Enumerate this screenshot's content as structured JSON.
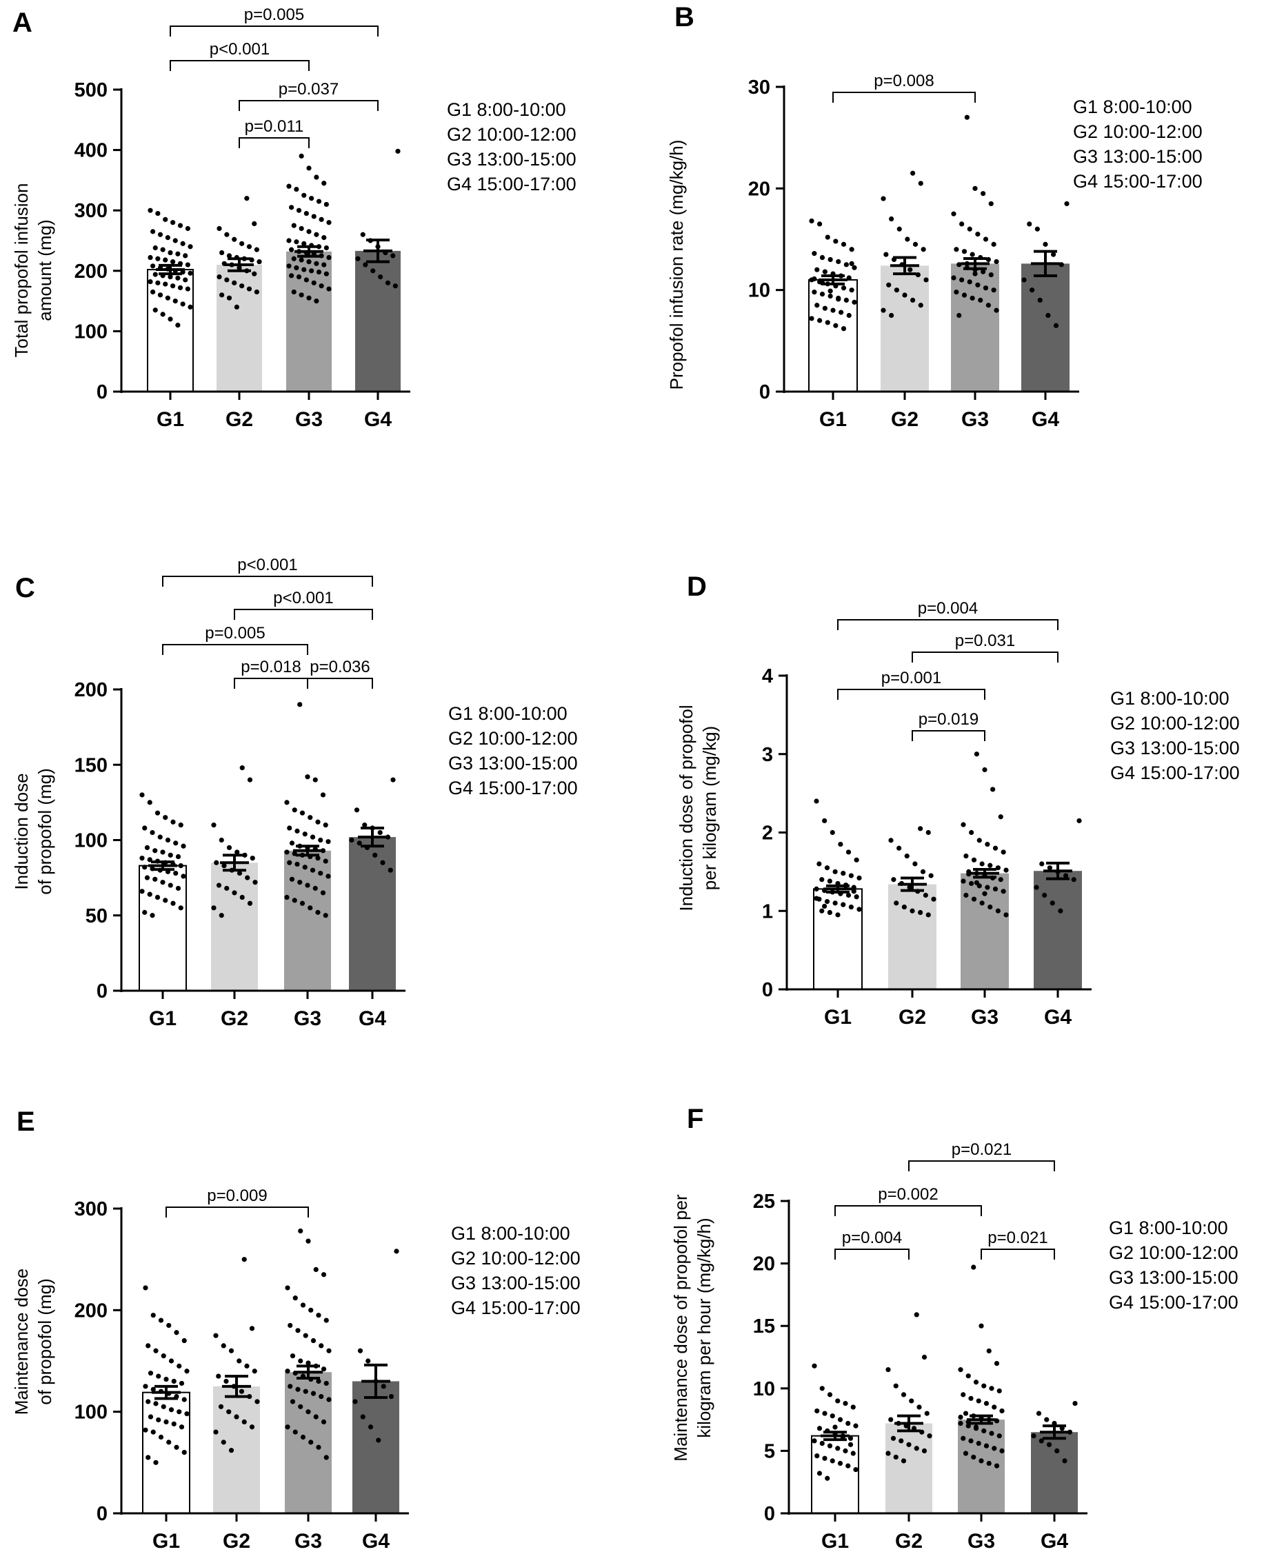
{
  "figure": {
    "legend_lines": [
      "G1   8:00-10:00",
      "G2 10:00-12:00",
      "G3 13:00-15:00",
      "G4 15:00-17:00"
    ],
    "bar_colors": [
      "#ffffff",
      "#d6d6d6",
      "#a0a0a0",
      "#636363"
    ],
    "axis_color": "#000000"
  },
  "chart_data": [
    {
      "panel": "A",
      "type": "bar",
      "categories": [
        "G1",
        "G2",
        "G3",
        "G4"
      ],
      "values": [
        202,
        210,
        232,
        233
      ],
      "sem": [
        7,
        10,
        8,
        18
      ],
      "ylabel": [
        "Total propofol infusion",
        "amount (mg)"
      ],
      "ylim": [
        0,
        500
      ],
      "yticks": [
        0,
        100,
        200,
        300,
        400,
        500
      ],
      "comparisons": [
        {
          "from": 0,
          "to": 3,
          "label": "p=0.005"
        },
        {
          "from": 0,
          "to": 2,
          "label": "p<0.001"
        },
        {
          "from": 1,
          "to": 3,
          "label": "p=0.037"
        },
        {
          "from": 1,
          "to": 2,
          "label": "p=0.011"
        }
      ],
      "points": [
        [
          300,
          295,
          285,
          280,
          275,
          270,
          265,
          260,
          255,
          250,
          245,
          240,
          238,
          235,
          230,
          228,
          225,
          222,
          220,
          218,
          215,
          212,
          210,
          208,
          205,
          203,
          200,
          198,
          196,
          194,
          192,
          190,
          188,
          185,
          182,
          180,
          178,
          175,
          172,
          170,
          165,
          160,
          155,
          150,
          145,
          140,
          135,
          128,
          120,
          110
        ],
        [
          320,
          278,
          270,
          260,
          252,
          245,
          240,
          235,
          230,
          225,
          222,
          220,
          218,
          215,
          212,
          210,
          205,
          200,
          195,
          190,
          185,
          180,
          175,
          170,
          165,
          160,
          155,
          140
        ],
        [
          390,
          370,
          355,
          345,
          340,
          335,
          325,
          320,
          315,
          310,
          305,
          300,
          295,
          290,
          285,
          280,
          275,
          270,
          265,
          260,
          255,
          250,
          248,
          245,
          242,
          240,
          238,
          235,
          232,
          230,
          228,
          225,
          222,
          220,
          218,
          215,
          212,
          210,
          208,
          205,
          202,
          200,
          198,
          195,
          192,
          190,
          185,
          180,
          175,
          170,
          165,
          160,
          155,
          150
        ],
        [
          398,
          260,
          250,
          240,
          230,
          225,
          220,
          210,
          200,
          190,
          180,
          175
        ]
      ]
    },
    {
      "panel": "B",
      "type": "bar",
      "categories": [
        "G1",
        "G2",
        "G3",
        "G4"
      ],
      "values": [
        11.0,
        12.4,
        12.6,
        12.6
      ],
      "sem": [
        0.4,
        0.8,
        0.5,
        1.2
      ],
      "ylabel": [
        "Propofol infusion rate (mg/kg/h)"
      ],
      "ylim": [
        0,
        30
      ],
      "yticks": [
        0,
        10,
        20,
        30
      ],
      "comparisons": [
        {
          "from": 0,
          "to": 2,
          "label": "p=0.008"
        }
      ],
      "points": [
        [
          16.8,
          16.5,
          15.2,
          14.8,
          14.5,
          14.0,
          13.6,
          13.2,
          13.0,
          12.8,
          12.5,
          12.2,
          12.0,
          11.8,
          11.6,
          11.4,
          11.2,
          11.0,
          10.8,
          10.6,
          10.4,
          10.2,
          10.0,
          9.8,
          9.6,
          9.4,
          9.2,
          9.0,
          8.8,
          8.5,
          8.2,
          8.0,
          7.8,
          7.5,
          7.2,
          7.0,
          6.8,
          6.5,
          6.2,
          12.6,
          11.1,
          10.7,
          9.9,
          9.1
        ],
        [
          21.5,
          20.5,
          19.0,
          17.0,
          16.0,
          15.0,
          14.5,
          14.0,
          13.5,
          13.0,
          12.5,
          12.0,
          11.5,
          11.0,
          10.5,
          10.0,
          9.5,
          9.0,
          8.5,
          8.0,
          7.5
        ],
        [
          27.0,
          20.0,
          19.5,
          18.5,
          17.5,
          16.5,
          16.0,
          15.5,
          15.0,
          14.5,
          14.0,
          13.8,
          13.5,
          13.2,
          13.0,
          12.8,
          12.5,
          12.2,
          12.0,
          11.8,
          11.5,
          11.2,
          11.0,
          10.8,
          10.5,
          10.2,
          10.0,
          9.8,
          9.5,
          9.2,
          9.0,
          8.5,
          8.0,
          7.5,
          12.6,
          11.6
        ],
        [
          18.5,
          16.5,
          16.0,
          14.5,
          13.5,
          12.5,
          11.0,
          10.0,
          9.0,
          7.5,
          6.5
        ]
      ]
    },
    {
      "panel": "C",
      "type": "bar",
      "categories": [
        "G1",
        "G2",
        "G3",
        "G4"
      ],
      "values": [
        83,
        85,
        93,
        102
      ],
      "sem": [
        2.5,
        5,
        3,
        6
      ],
      "ylabel": [
        "Induction dose",
        "of propofol (mg)"
      ],
      "ylim": [
        0,
        200
      ],
      "yticks": [
        0,
        50,
        100,
        150,
        200
      ],
      "comparisons": [
        {
          "from": 0,
          "to": 3,
          "label": "p<0.001"
        },
        {
          "from": 1,
          "to": 3,
          "label": "p<0.001"
        },
        {
          "from": 0,
          "to": 2,
          "label": "p=0.005"
        },
        {
          "from": 1,
          "to": 2,
          "label": "p=0.018"
        },
        {
          "from": 2,
          "to": 3,
          "label": "p=0.036"
        }
      ],
      "points": [
        [
          130,
          125,
          118,
          115,
          112,
          110,
          108,
          105,
          102,
          100,
          98,
          96,
          95,
          93,
          92,
          90,
          89,
          88,
          87,
          86,
          85,
          84,
          83,
          82,
          81,
          80,
          79,
          78,
          76,
          75,
          74,
          72,
          70,
          68,
          66,
          64,
          62,
          60,
          58,
          55,
          52,
          50
        ],
        [
          148,
          140,
          110,
          100,
          95,
          92,
          90,
          88,
          85,
          83,
          80,
          78,
          75,
          72,
          70,
          68,
          65,
          62,
          58,
          55,
          50
        ],
        [
          190,
          142,
          140,
          130,
          125,
          120,
          118,
          115,
          112,
          110,
          108,
          106,
          104,
          102,
          100,
          99,
          98,
          96,
          95,
          94,
          93,
          92,
          91,
          90,
          89,
          88,
          86,
          85,
          84,
          82,
          80,
          78,
          76,
          74,
          72,
          70,
          68,
          65,
          62,
          60,
          58,
          55,
          52,
          50
        ],
        [
          140,
          120,
          110,
          108,
          105,
          102,
          100,
          98,
          95,
          90,
          85,
          80
        ]
      ]
    },
    {
      "panel": "D",
      "type": "bar",
      "categories": [
        "G1",
        "G2",
        "G3",
        "G4"
      ],
      "values": [
        1.28,
        1.34,
        1.48,
        1.51
      ],
      "sem": [
        0.04,
        0.08,
        0.05,
        0.1
      ],
      "ylabel": [
        "Induction dose of propofol",
        "per kilogram (mg/kg)"
      ],
      "ylim": [
        0,
        4
      ],
      "yticks": [
        0,
        1,
        2,
        3,
        4
      ],
      "comparisons": [
        {
          "from": 0,
          "to": 3,
          "label": "p=0.004"
        },
        {
          "from": 1,
          "to": 3,
          "label": "p=0.031"
        },
        {
          "from": 0,
          "to": 2,
          "label": "p=0.001"
        },
        {
          "from": 1,
          "to": 2,
          "label": "p=0.019"
        }
      ],
      "points": [
        [
          2.4,
          2.15,
          2.0,
          1.85,
          1.75,
          1.65,
          1.6,
          1.55,
          1.5,
          1.48,
          1.45,
          1.42,
          1.4,
          1.38,
          1.35,
          1.33,
          1.3,
          1.28,
          1.26,
          1.24,
          1.22,
          1.2,
          1.18,
          1.15,
          1.12,
          1.1,
          1.08,
          1.05,
          1.02,
          1.0,
          0.98,
          0.95,
          1.32,
          1.25,
          1.16,
          1.06
        ],
        [
          2.05,
          2.0,
          1.9,
          1.8,
          1.7,
          1.6,
          1.5,
          1.45,
          1.4,
          1.35,
          1.3,
          1.25,
          1.2,
          1.15,
          1.1,
          1.05,
          1.0,
          0.98,
          0.95
        ],
        [
          3.0,
          2.8,
          2.55,
          2.2,
          2.1,
          2.0,
          1.9,
          1.85,
          1.8,
          1.75,
          1.7,
          1.65,
          1.6,
          1.58,
          1.55,
          1.52,
          1.5,
          1.48,
          1.45,
          1.42,
          1.4,
          1.38,
          1.35,
          1.32,
          1.3,
          1.28,
          1.25,
          1.2,
          1.15,
          1.1,
          1.05,
          1.0,
          0.95,
          1.47,
          1.36,
          1.22
        ],
        [
          2.15,
          1.6,
          1.55,
          1.5,
          1.45,
          1.4,
          1.3,
          1.2,
          1.1,
          1.0
        ]
      ]
    },
    {
      "panel": "E",
      "type": "bar",
      "categories": [
        "G1",
        "G2",
        "G3",
        "G4"
      ],
      "values": [
        119,
        125,
        139,
        130
      ],
      "sem": [
        6,
        10,
        6,
        16
      ],
      "ylabel": [
        "Maintenance dose",
        "of propofol (mg)"
      ],
      "ylim": [
        0,
        300
      ],
      "yticks": [
        0,
        100,
        200,
        300
      ],
      "comparisons": [
        {
          "from": 0,
          "to": 2,
          "label": "p=0.009"
        }
      ],
      "points": [
        [
          222,
          195,
          190,
          185,
          178,
          170,
          165,
          160,
          155,
          150,
          145,
          140,
          138,
          135,
          132,
          130,
          128,
          125,
          122,
          120,
          118,
          115,
          112,
          110,
          108,
          105,
          102,
          100,
          98,
          95,
          92,
          90,
          88,
          85,
          82,
          80,
          75,
          70,
          65,
          60,
          55,
          50
        ],
        [
          250,
          182,
          175,
          165,
          160,
          150,
          145,
          140,
          135,
          130,
          125,
          120,
          115,
          110,
          105,
          100,
          95,
          90,
          85,
          80,
          70,
          62
        ],
        [
          278,
          268,
          240,
          235,
          222,
          212,
          205,
          200,
          195,
          190,
          185,
          180,
          175,
          170,
          165,
          160,
          155,
          150,
          148,
          145,
          142,
          140,
          138,
          135,
          132,
          130,
          128,
          125,
          122,
          120,
          118,
          115,
          112,
          110,
          105,
          100,
          95,
          90,
          85,
          80,
          75,
          70,
          65,
          55
        ],
        [
          258,
          160,
          150,
          130,
          125,
          115,
          110,
          95,
          85,
          72
        ]
      ]
    },
    {
      "panel": "F",
      "type": "bar",
      "categories": [
        "G1",
        "G2",
        "G3",
        "G4"
      ],
      "values": [
        6.2,
        7.2,
        7.5,
        6.5
      ],
      "sem": [
        0.3,
        0.6,
        0.3,
        0.5
      ],
      "ylabel": [
        "Maintenance dose of propofol per",
        "kilogram per hour (mg/kg/h)"
      ],
      "ylim": [
        0,
        25
      ],
      "yticks": [
        0,
        5,
        10,
        15,
        20,
        25
      ],
      "comparisons": [
        {
          "from": 1,
          "to": 3,
          "label": "p=0.021"
        },
        {
          "from": 0,
          "to": 2,
          "label": "p=0.002"
        },
        {
          "from": 0,
          "to": 1,
          "label": "p=0.004"
        },
        {
          "from": 2,
          "to": 3,
          "label": "p=0.021"
        }
      ],
      "points": [
        [
          11.8,
          10.0,
          9.5,
          9.0,
          8.8,
          8.5,
          8.2,
          8.0,
          7.8,
          7.5,
          7.2,
          7.0,
          6.8,
          6.6,
          6.4,
          6.2,
          6.0,
          5.8,
          5.6,
          5.4,
          5.2,
          5.0,
          4.8,
          4.6,
          4.4,
          4.2,
          4.0,
          3.8,
          3.5,
          3.2,
          2.8,
          6.9,
          6.1,
          5.5
        ],
        [
          15.9,
          12.5,
          11.5,
          10.2,
          9.5,
          9.0,
          8.5,
          8.0,
          7.5,
          7.2,
          7.0,
          6.8,
          6.5,
          6.2,
          6.0,
          5.8,
          5.5,
          5.2,
          5.0,
          4.8,
          4.5,
          4.2
        ],
        [
          19.7,
          15.0,
          13.0,
          12.0,
          11.5,
          11.0,
          10.5,
          10.2,
          10.0,
          9.8,
          9.5,
          9.2,
          9.0,
          8.8,
          8.5,
          8.2,
          8.0,
          7.8,
          7.6,
          7.5,
          7.4,
          7.2,
          7.0,
          6.8,
          6.6,
          6.4,
          6.2,
          6.0,
          5.8,
          5.6,
          5.4,
          5.2,
          5.0,
          4.8,
          4.5,
          4.2,
          4.0,
          3.8,
          7.7,
          7.3,
          6.9
        ],
        [
          8.8,
          8.0,
          7.5,
          7.2,
          6.8,
          6.5,
          6.2,
          5.8,
          5.5,
          5.0,
          4.2
        ]
      ]
    }
  ]
}
